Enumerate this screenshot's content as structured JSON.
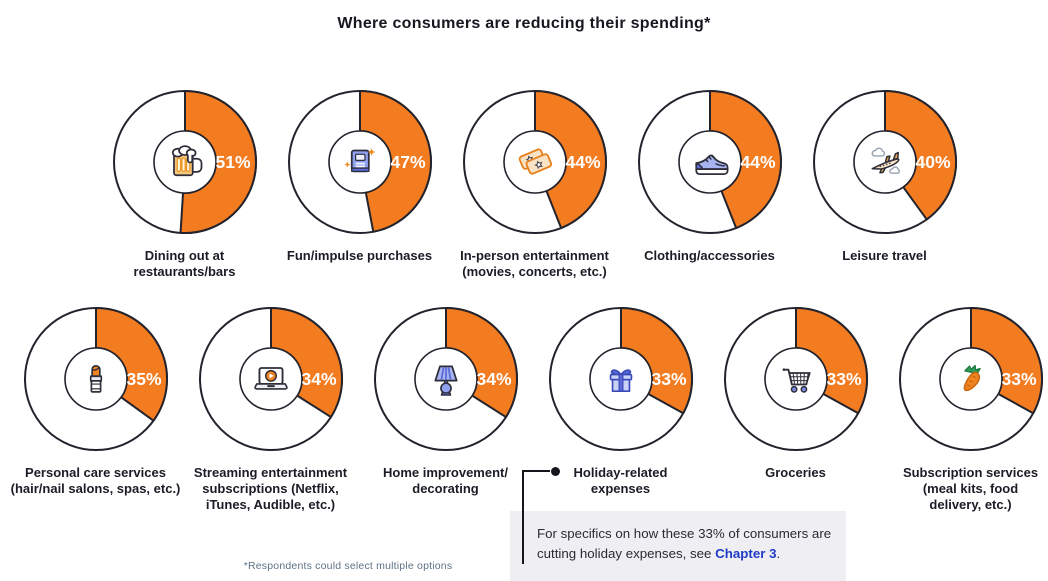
{
  "title": "Where consumers are reducing their spending*",
  "footnote": "*Respondents could select multiple options",
  "callout": {
    "text_before": "For specifics on how these 33% of consumers are cutting holiday expenses, see ",
    "link_label": "Chapter 3",
    "text_after": "."
  },
  "colors": {
    "accent": "#F47C20",
    "outline": "#23232D",
    "link_blue": "#1F3BC7",
    "callout_bg": "#EFEFF3",
    "text_dark": "#1C1C26",
    "footnote_gray": "#5E7287",
    "pct_text": "#FFFFFF"
  },
  "chart_data": {
    "type": "pie",
    "title": "Where consumers are reducing their spending*",
    "unit": "percent of consumers",
    "legend_position": "none",
    "note": "*Respondents could select multiple options",
    "items": [
      {
        "category": "Dining out at restaurants/bars",
        "label_lines": [
          "Dining out at",
          "restaurants/bars"
        ],
        "value": 51,
        "pct_label": "51%",
        "icon": "beer-mug-icon"
      },
      {
        "category": "Fun/impulse purchases",
        "label_lines": [
          "Fun/impulse purchases"
        ],
        "value": 47,
        "pct_label": "47%",
        "icon": "book-sparkles-icon"
      },
      {
        "category": "In-person entertainment (movies, concerts, etc.)",
        "label_lines": [
          "In-person entertainment",
          "(movies, concerts, etc.)"
        ],
        "value": 44,
        "pct_label": "44%",
        "icon": "tickets-icon"
      },
      {
        "category": "Clothing/accessories",
        "label_lines": [
          "Clothing/accessories"
        ],
        "value": 44,
        "pct_label": "44%",
        "icon": "sneaker-icon"
      },
      {
        "category": "Leisure travel",
        "label_lines": [
          "Leisure travel"
        ],
        "value": 40,
        "pct_label": "40%",
        "icon": "airplane-icon"
      },
      {
        "category": "Personal care services (hair/nail salons, spas, etc.)",
        "label_lines": [
          "Personal care services",
          "(hair/nail salons, spas, etc.)"
        ],
        "value": 35,
        "pct_label": "35%",
        "icon": "lipstick-icon"
      },
      {
        "category": "Streaming entertainment subscriptions (Netflix, iTunes, Audible, etc.)",
        "label_lines": [
          "Streaming entertainment",
          "subscriptions (Netflix,",
          "iTunes, Audible, etc.)"
        ],
        "value": 34,
        "pct_label": "34%",
        "icon": "laptop-play-icon"
      },
      {
        "category": "Home improvement/decorating",
        "label_lines": [
          "Home improvement/",
          "decorating"
        ],
        "value": 34,
        "pct_label": "34%",
        "icon": "lamp-icon"
      },
      {
        "category": "Holiday-related expenses",
        "label_lines": [
          "Holiday-related",
          "expenses"
        ],
        "value": 33,
        "pct_label": "33%",
        "icon": "gift-icon"
      },
      {
        "category": "Groceries",
        "label_lines": [
          "Groceries"
        ],
        "value": 33,
        "pct_label": "33%",
        "icon": "shopping-cart-icon"
      },
      {
        "category": "Subscription services (meal kits, food delivery, etc.)",
        "label_lines": [
          "Subscription services",
          "(meal kits, food",
          "delivery, etc.)"
        ],
        "value": 33,
        "pct_label": "33%",
        "icon": "carrot-icon"
      }
    ]
  }
}
